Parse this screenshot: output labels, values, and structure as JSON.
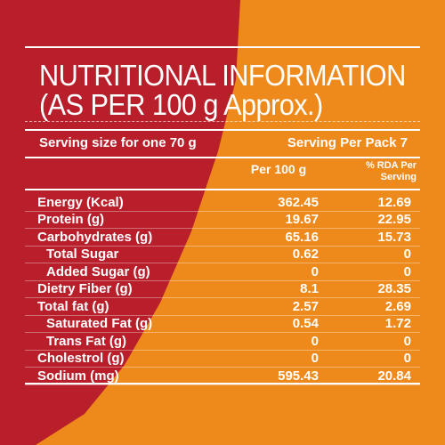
{
  "title_line1": "NUTRITIONAL INFORMATION",
  "title_line2": "(AS PER 100 g Approx.)",
  "serving_size": "Serving size for one 70 g",
  "serving_per_pack": "Serving Per Pack 7",
  "columns": {
    "per100": "Per 100 g",
    "rda_line1": "% RDA Per",
    "rda_line2": "Serving"
  },
  "rows": [
    {
      "label": "Energy (Kcal)",
      "per100": "362.45",
      "rda": "12.69",
      "sub": false
    },
    {
      "label": "Protein (g)",
      "per100": "19.67",
      "rda": "22.95",
      "sub": false
    },
    {
      "label": "Carbohydrates (g)",
      "per100": "65.16",
      "rda": "15.73",
      "sub": false
    },
    {
      "label": "Total Sugar",
      "per100": "0.62",
      "rda": "0",
      "sub": true
    },
    {
      "label": "Added Sugar (g)",
      "per100": "0",
      "rda": "0",
      "sub": true
    },
    {
      "label": "Dietry Fiber (g)",
      "per100": "8.1",
      "rda": "28.35",
      "sub": false
    },
    {
      "label": "Total fat (g)",
      "per100": "2.57",
      "rda": "2.69",
      "sub": false
    },
    {
      "label": "Saturated Fat (g)",
      "per100": "0.54",
      "rda": "1.72",
      "sub": true
    },
    {
      "label": "Trans Fat (g)",
      "per100": "0",
      "rda": "0",
      "sub": true
    },
    {
      "label": "Cholestrol (g)",
      "per100": "0",
      "rda": "0",
      "sub": false
    },
    {
      "label": "Sodium (mg)",
      "per100": "595.43",
      "rda": "20.84",
      "sub": false
    }
  ],
  "colors": {
    "red": "#b81f2a",
    "orange": "#ee8a1c",
    "text": "#ffffff"
  }
}
